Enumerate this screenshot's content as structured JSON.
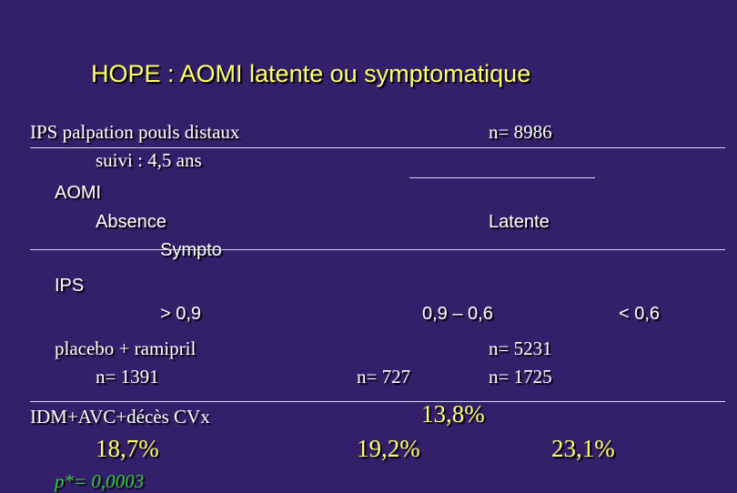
{
  "title": "HOPE : AOMI latente ou symptomatique",
  "ips_method": "IPS palpation pouls distaux",
  "follow_up": "suivi : 4,5 ans",
  "n_total": "n= 8986",
  "aomi_label": "AOMI",
  "aomi_absence": "Absence",
  "aomi_latente": "Latente",
  "aomi_sympto": "Sympto",
  "ips_label": "IPS",
  "ips_gt": "> 0,9",
  "ips_mid": "0,9 – 0,6",
  "ips_lt": "< 0,6",
  "treatment": "placebo + ramipril",
  "n_absence": "n= 1391",
  "n_727": "n= 727",
  "n_5231": "n= 5231",
  "n_1725": "n= 1725",
  "outcome_label": "IDM+AVC+décès CVx",
  "pct_absence": "18,7%",
  "pct_latente_1": "19,2%",
  "pct_latente_2": "13,8%",
  "pct_sympto": "23,1%",
  "p_value": "p*= 0,0003",
  "colors": {
    "background": "#33206a",
    "title": "#ffff66",
    "text": "#ffffff",
    "p_value": "#33cc33"
  }
}
